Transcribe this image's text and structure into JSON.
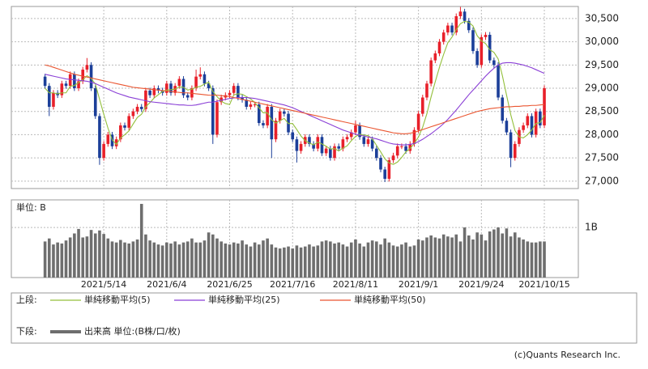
{
  "chart_data": [
    {
      "type": "candlestick",
      "legend_label": "上段:",
      "up_color": "#e8202a",
      "down_color": "#1c3f99",
      "grid": true,
      "ylim": [
        26840,
        30760
      ],
      "yticks": [
        {
          "value": 27000,
          "label": "27,000"
        },
        {
          "value": 27500,
          "label": "27,500"
        },
        {
          "value": 28000,
          "label": "28,000"
        },
        {
          "value": 28500,
          "label": "28,500"
        },
        {
          "value": 29000,
          "label": "29,000"
        },
        {
          "value": 29500,
          "label": "29,500"
        },
        {
          "value": 30000,
          "label": "30,000"
        },
        {
          "value": 30500,
          "label": "30,500"
        }
      ],
      "open": [
        29250,
        29050,
        28600,
        28900,
        28850,
        29100,
        29050,
        29300,
        29000,
        29150,
        29400,
        29500,
        29000,
        28400,
        27500,
        27800,
        28000,
        27750,
        27900,
        28200,
        28150,
        28400,
        28500,
        28600,
        28550,
        28950,
        28850,
        29000,
        28950,
        28900,
        29100,
        28900,
        29050,
        29200,
        28850,
        28800,
        29000,
        29250,
        29300,
        29100,
        29000,
        28000,
        28700,
        28800,
        28850,
        28900,
        29050,
        28800,
        28750,
        28600,
        28650,
        28650,
        28250,
        28200,
        28600,
        27900,
        28300,
        28500,
        28450,
        28050,
        27900,
        27650,
        27800,
        27950,
        27800,
        27700,
        27950,
        27600,
        27700,
        27500,
        27750,
        27700,
        27900,
        27950,
        28050,
        28200,
        27950,
        27800,
        27900,
        27700,
        27500,
        27250,
        27050,
        27450,
        27550,
        27750,
        27750,
        27650,
        27800,
        28100,
        28450,
        28800,
        29100,
        29600,
        29750,
        30000,
        30200,
        30350,
        30200,
        30550,
        30650,
        30450,
        30250,
        29800,
        29500,
        30100,
        30150,
        29600,
        29500,
        28800,
        28300,
        28050,
        27500,
        27800,
        28100,
        28200,
        28400,
        28000,
        28500,
        28200
      ],
      "high": [
        29310,
        29110,
        28960,
        28960,
        29160,
        29160,
        29360,
        29360,
        29210,
        29460,
        29650,
        29560,
        29060,
        28460,
        27860,
        28060,
        28060,
        27960,
        28260,
        28260,
        28460,
        28560,
        28660,
        28660,
        29010,
        29010,
        29060,
        29060,
        29010,
        29160,
        29160,
        29110,
        29260,
        29260,
        28910,
        29060,
        29400,
        29450,
        29360,
        29160,
        29060,
        28760,
        28860,
        28910,
        28960,
        29110,
        29110,
        28860,
        28810,
        28710,
        28710,
        28710,
        28310,
        28660,
        28660,
        28360,
        28560,
        28560,
        28510,
        28110,
        27960,
        27860,
        28010,
        28010,
        27860,
        28010,
        28010,
        27760,
        27760,
        27810,
        27810,
        27960,
        28010,
        28110,
        28300,
        28260,
        28010,
        27960,
        27960,
        27760,
        27560,
        27310,
        27510,
        27610,
        27810,
        27810,
        27810,
        27860,
        28160,
        28510,
        28860,
        29160,
        29660,
        29810,
        30060,
        30260,
        30410,
        30410,
        30610,
        30750,
        30710,
        30510,
        30310,
        29860,
        30160,
        30210,
        30210,
        29660,
        29560,
        28860,
        28360,
        28110,
        27860,
        28160,
        28260,
        28460,
        28460,
        28560,
        28560,
        29060
      ],
      "low": [
        28990,
        28400,
        28540,
        28790,
        28790,
        28990,
        28990,
        28940,
        28940,
        29090,
        29340,
        28940,
        28340,
        27350,
        27440,
        27740,
        27690,
        27690,
        27840,
        28090,
        28090,
        28340,
        28440,
        28490,
        28490,
        28790,
        28790,
        28890,
        28840,
        28840,
        28840,
        28840,
        28990,
        28790,
        28740,
        28740,
        28940,
        29190,
        29040,
        28940,
        27800,
        27940,
        28640,
        28740,
        28790,
        28840,
        28740,
        28690,
        28540,
        28540,
        28590,
        28190,
        28140,
        28140,
        27500,
        27840,
        28240,
        28390,
        27990,
        27840,
        27400,
        27590,
        27740,
        27740,
        27640,
        27640,
        27540,
        27540,
        27440,
        27440,
        27640,
        27640,
        27840,
        27890,
        27990,
        27890,
        27740,
        27740,
        27640,
        27440,
        27190,
        26980,
        26990,
        27390,
        27490,
        27690,
        27590,
        27590,
        27740,
        28040,
        28390,
        28740,
        29040,
        29540,
        29690,
        29940,
        30140,
        30140,
        30140,
        30490,
        30390,
        30190,
        29740,
        29440,
        29440,
        30040,
        29540,
        29440,
        28740,
        28240,
        27990,
        27300,
        27440,
        27740,
        28040,
        28140,
        27940,
        27940,
        28140,
        28140
      ],
      "close": [
        29050,
        28600,
        28900,
        28850,
        29100,
        29050,
        29300,
        29000,
        29150,
        29400,
        29500,
        29000,
        28400,
        27500,
        27800,
        28000,
        27750,
        27900,
        28200,
        28150,
        28400,
        28500,
        28600,
        28550,
        28950,
        28850,
        29000,
        28950,
        28900,
        29100,
        28900,
        29050,
        29200,
        28850,
        28800,
        29000,
        29250,
        29300,
        29100,
        29000,
        28000,
        28700,
        28800,
        28850,
        28900,
        29050,
        28800,
        28750,
        28600,
        28650,
        28650,
        28250,
        28200,
        28600,
        27900,
        28300,
        28500,
        28450,
        28050,
        27900,
        27650,
        27800,
        27950,
        27800,
        27700,
        27950,
        27600,
        27700,
        27500,
        27750,
        27700,
        27900,
        27950,
        28050,
        28200,
        27950,
        27800,
        27900,
        27700,
        27500,
        27250,
        27050,
        27450,
        27550,
        27750,
        27750,
        27650,
        27800,
        28100,
        28450,
        28800,
        29100,
        29600,
        29750,
        30000,
        30200,
        30350,
        30200,
        30550,
        30650,
        30450,
        30250,
        29800,
        29500,
        30100,
        30150,
        29600,
        29500,
        28800,
        28300,
        28050,
        27500,
        27800,
        28100,
        28200,
        28400,
        28000,
        28500,
        28200,
        29000
      ],
      "series": [
        {
          "name": "単純移動平均(5)",
          "color": "#93bf3b",
          "values": [
            29000,
            28900,
            28900,
            28880,
            28900,
            28900,
            29040,
            29060,
            29120,
            29180,
            29270,
            29210,
            29090,
            28760,
            28440,
            28140,
            27890,
            27790,
            27930,
            28000,
            28080,
            28230,
            28370,
            28440,
            28600,
            28690,
            28790,
            28860,
            28930,
            28960,
            28970,
            28980,
            29030,
            29020,
            28960,
            28980,
            29020,
            29040,
            29090,
            29130,
            28930,
            28820,
            28720,
            28670,
            28650,
            28860,
            28880,
            28870,
            28820,
            28770,
            28690,
            28580,
            28470,
            28470,
            28320,
            28250,
            28300,
            28350,
            28240,
            28240,
            28110,
            27970,
            27870,
            27820,
            27780,
            27840,
            27800,
            27750,
            27690,
            27700,
            27650,
            27710,
            27760,
            27870,
            27960,
            28010,
            27990,
            27980,
            27910,
            27770,
            27630,
            27480,
            27390,
            27360,
            27410,
            27510,
            27630,
            27700,
            27810,
            27950,
            28160,
            28450,
            28810,
            29140,
            29450,
            29730,
            29980,
            30100,
            30260,
            30390,
            30440,
            30420,
            30340,
            30130,
            30020,
            29960,
            29830,
            29770,
            29630,
            29270,
            28850,
            28430,
            28090,
            27950,
            27930,
            28000,
            28100,
            28240,
            28260,
            28420
          ]
        },
        {
          "name": "単純移動平均(25)",
          "color": "#8a3fd6",
          "values": [
            29300,
            29280,
            29260,
            29240,
            29220,
            29200,
            29190,
            29180,
            29170,
            29160,
            29150,
            29130,
            29100,
            29060,
            29020,
            28980,
            28940,
            28900,
            28870,
            28840,
            28810,
            28790,
            28770,
            28750,
            28730,
            28710,
            28700,
            28690,
            28680,
            28670,
            28660,
            28650,
            28640,
            28640,
            28630,
            28630,
            28640,
            28660,
            28680,
            28700,
            28700,
            28720,
            28740,
            28760,
            28780,
            28790,
            28800,
            28800,
            28800,
            28790,
            28780,
            28760,
            28740,
            28720,
            28700,
            28680,
            28660,
            28640,
            28610,
            28580,
            28540,
            28500,
            28460,
            28420,
            28380,
            28340,
            28300,
            28260,
            28220,
            28180,
            28140,
            28100,
            28070,
            28040,
            28010,
            27990,
            27970,
            27950,
            27930,
            27910,
            27880,
            27850,
            27820,
            27800,
            27790,
            27780,
            27780,
            27790,
            27810,
            27850,
            27900,
            27960,
            28020,
            28090,
            28160,
            28240,
            28330,
            28430,
            28530,
            28640,
            28750,
            28860,
            28960,
            29060,
            29160,
            29260,
            29350,
            29430,
            29500,
            29540,
            29550,
            29550,
            29540,
            29520,
            29500,
            29470,
            29440,
            29400,
            29360,
            29320
          ]
        },
        {
          "name": "単純移動平均(50)",
          "color": "#ea5530",
          "values": [
            29500,
            29480,
            29450,
            29420,
            29390,
            29360,
            29330,
            29300,
            29280,
            29260,
            29240,
            29220,
            29200,
            29180,
            29160,
            29140,
            29120,
            29100,
            29080,
            29060,
            29040,
            29020,
            29010,
            29000,
            28990,
            28980,
            28970,
            28960,
            28950,
            28940,
            28930,
            28920,
            28910,
            28900,
            28900,
            28890,
            28880,
            28870,
            28860,
            28850,
            28850,
            28850,
            28840,
            28830,
            28820,
            28800,
            28780,
            28760,
            28740,
            28720,
            28700,
            28680,
            28660,
            28640,
            28620,
            28600,
            28580,
            28560,
            28540,
            28520,
            28500,
            28480,
            28460,
            28440,
            28420,
            28400,
            28380,
            28360,
            28340,
            28320,
            28300,
            28280,
            28260,
            28240,
            28220,
            28200,
            28180,
            28160,
            28140,
            28120,
            28100,
            28080,
            28060,
            28040,
            28030,
            28020,
            28020,
            28030,
            28050,
            28080,
            28110,
            28140,
            28170,
            28200,
            28230,
            28260,
            28290,
            28320,
            28350,
            28380,
            28410,
            28440,
            28470,
            28500,
            28520,
            28540,
            28560,
            28570,
            28580,
            28590,
            28600,
            28600,
            28610,
            28610,
            28620,
            28620,
            28630,
            28630,
            28640,
            28650
          ]
        }
      ]
    },
    {
      "type": "bar",
      "unit_label": "単位: B",
      "legend_label": "下段:",
      "grid": true,
      "ylim": [
        0,
        1.55
      ],
      "yticks": [
        {
          "value": 1,
          "label": "1B"
        }
      ],
      "categories": [
        null,
        null,
        null,
        null,
        null,
        null,
        null,
        null,
        null,
        null,
        null,
        null,
        null,
        null,
        "2021/5/14",
        null,
        null,
        null,
        null,
        null,
        null,
        null,
        null,
        null,
        null,
        null,
        null,
        null,
        null,
        "2021/6/4",
        null,
        null,
        null,
        null,
        null,
        null,
        null,
        null,
        null,
        null,
        null,
        null,
        null,
        null,
        "2021/6/25",
        null,
        null,
        null,
        null,
        null,
        null,
        null,
        null,
        null,
        null,
        null,
        null,
        null,
        null,
        "2021/7/16",
        null,
        null,
        null,
        null,
        null,
        null,
        null,
        null,
        null,
        null,
        null,
        null,
        null,
        null,
        "2021/8/11",
        null,
        null,
        null,
        null,
        null,
        null,
        null,
        null,
        null,
        null,
        null,
        null,
        null,
        null,
        "2021/9/1",
        null,
        null,
        null,
        null,
        null,
        null,
        null,
        null,
        null,
        null,
        null,
        null,
        null,
        null,
        "2021/9/24",
        null,
        null,
        null,
        null,
        null,
        null,
        null,
        null,
        null,
        null,
        null,
        null,
        null,
        null,
        "2021/10/15"
      ],
      "series": [
        {
          "name": "出来高 単位:(B株/口/枚)",
          "color": "#6e6e6e",
          "values": [
            0.72,
            0.78,
            0.66,
            0.7,
            0.68,
            0.74,
            0.8,
            0.88,
            0.97,
            0.8,
            0.82,
            0.95,
            0.88,
            0.94,
            0.87,
            0.78,
            0.72,
            0.7,
            0.75,
            0.7,
            0.68,
            0.72,
            0.76,
            1.47,
            0.86,
            0.74,
            0.7,
            0.66,
            0.64,
            0.7,
            0.68,
            0.72,
            0.66,
            0.7,
            0.72,
            0.78,
            0.7,
            0.7,
            0.74,
            0.9,
            0.86,
            0.78,
            0.72,
            0.68,
            0.66,
            0.7,
            0.68,
            0.74,
            0.66,
            0.62,
            0.7,
            0.66,
            0.74,
            0.78,
            0.66,
            0.6,
            0.58,
            0.6,
            0.62,
            0.58,
            0.64,
            0.6,
            0.62,
            0.66,
            0.62,
            0.64,
            0.72,
            0.74,
            0.72,
            0.68,
            0.7,
            0.66,
            0.62,
            0.7,
            0.76,
            0.68,
            0.62,
            0.7,
            0.74,
            0.72,
            0.66,
            0.78,
            0.7,
            0.64,
            0.62,
            0.66,
            0.7,
            0.62,
            0.64,
            0.76,
            0.74,
            0.8,
            0.84,
            0.8,
            0.78,
            0.86,
            0.82,
            0.8,
            0.86,
            0.72,
            1.0,
            0.84,
            0.76,
            0.9,
            0.86,
            0.74,
            0.92,
            0.96,
            1.0,
            0.88,
            0.98,
            0.82,
            0.9,
            0.8,
            0.76,
            0.72,
            0.7,
            0.7,
            0.72,
            0.72
          ]
        }
      ]
    }
  ],
  "copyright": "(c)Quants Research Inc."
}
